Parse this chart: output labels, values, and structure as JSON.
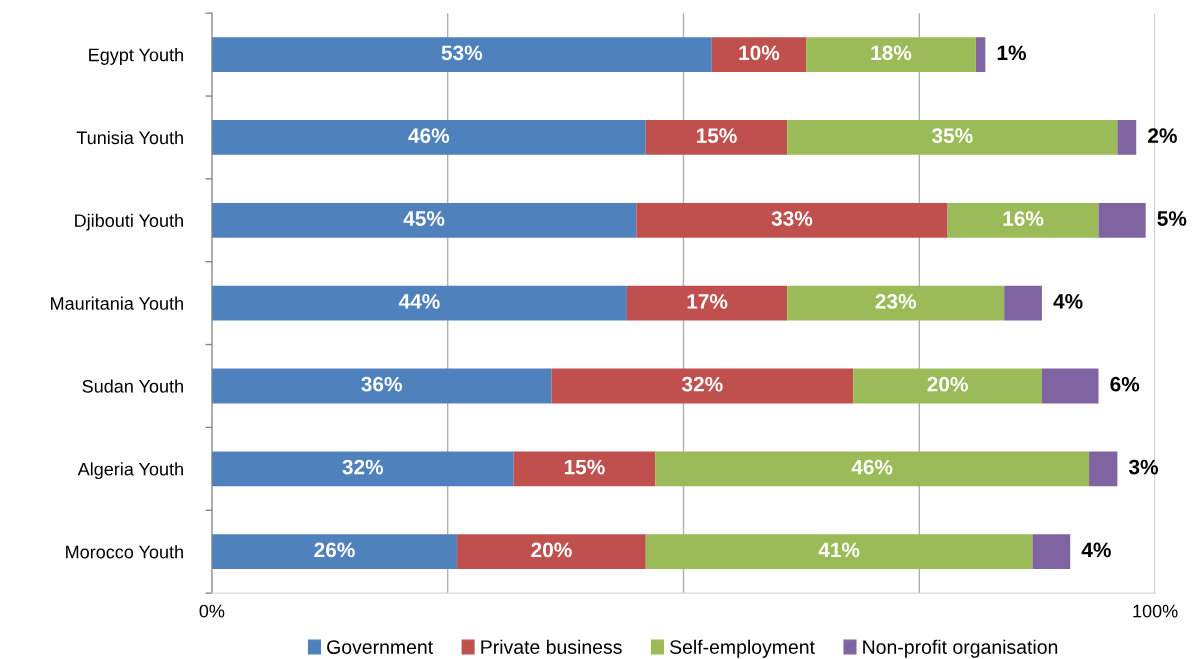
{
  "chart_data": {
    "type": "bar",
    "orientation": "horizontal",
    "stacked": true,
    "categories": [
      "Egypt Youth",
      "Tunisia Youth",
      "Djibouti Youth",
      "Mauritania Youth",
      "Sudan Youth",
      "Algeria Youth",
      "Morocco Youth"
    ],
    "series": [
      {
        "name": "Government",
        "color": "#4f81bd",
        "values": [
          53,
          46,
          45,
          44,
          36,
          32,
          26
        ],
        "value_labels": [
          "53%",
          "46%",
          "45%",
          "44%",
          "36%",
          "32%",
          "26%"
        ]
      },
      {
        "name": "Private business",
        "color": "#c0504d",
        "values": [
          10,
          15,
          33,
          17,
          32,
          15,
          20
        ],
        "value_labels": [
          "10%",
          "15%",
          "33%",
          "17%",
          "32%",
          "15%",
          "20%"
        ]
      },
      {
        "name": "Self-employment",
        "color": "#9bbb59",
        "values": [
          18,
          35,
          16,
          23,
          20,
          46,
          41
        ],
        "value_labels": [
          "18%",
          "35%",
          "16%",
          "23%",
          "20%",
          "46%",
          "41%"
        ]
      },
      {
        "name": "Non-profit organisation",
        "color": "#8064a2",
        "values": [
          1,
          2,
          5,
          4,
          6,
          3,
          4
        ],
        "value_labels": [
          "1%",
          "2%",
          "5%",
          "4%",
          "6%",
          "3%",
          "4%"
        ]
      }
    ],
    "xlim": [
      0,
      100
    ],
    "xticks": [
      {
        "value": 0,
        "label": "0%"
      },
      {
        "value": 25,
        "label": null
      },
      {
        "value": 50,
        "label": null
      },
      {
        "value": 75,
        "label": null
      },
      {
        "value": 100,
        "label": "100%"
      }
    ],
    "grid": "x",
    "legend": "bottom"
  }
}
